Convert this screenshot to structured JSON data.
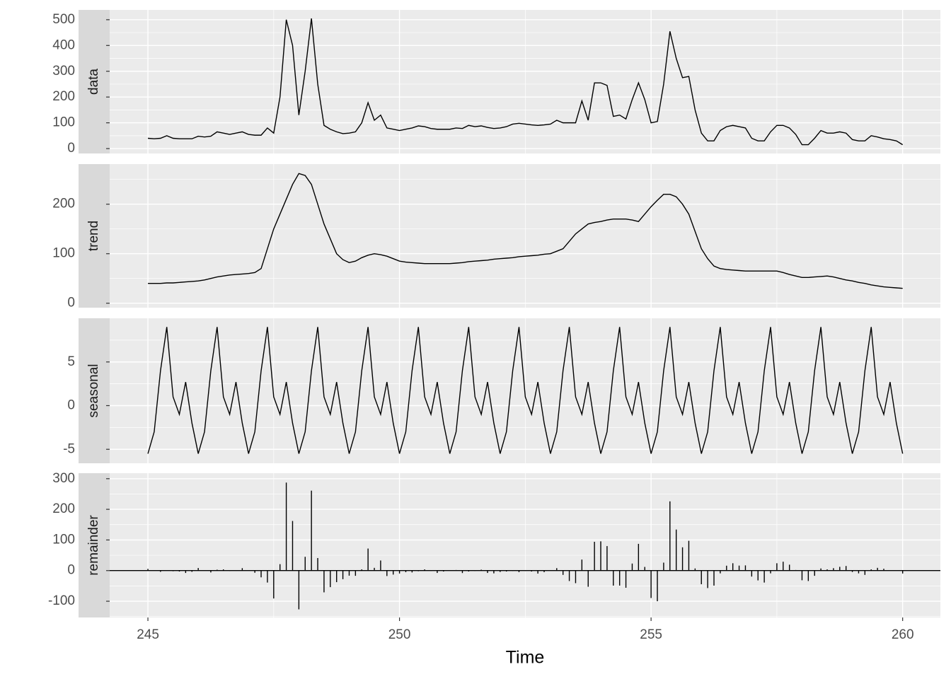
{
  "chart_data": [
    {
      "type": "line",
      "strip_label": "data",
      "ylim": [
        -19,
        538
      ],
      "yticks": [
        0,
        100,
        200,
        300,
        400,
        500
      ],
      "grid": true,
      "color": "#000000",
      "values": [
        40,
        38,
        40,
        50,
        40,
        38,
        38,
        38,
        48,
        45,
        48,
        65,
        60,
        55,
        60,
        65,
        55,
        52,
        52,
        80,
        60,
        200,
        500,
        400,
        130,
        300,
        505,
        250,
        90,
        75,
        65,
        58,
        60,
        65,
        100,
        178,
        110,
        130,
        80,
        75,
        70,
        75,
        80,
        88,
        85,
        78,
        75,
        75,
        75,
        80,
        78,
        90,
        85,
        88,
        82,
        78,
        80,
        85,
        95,
        98,
        95,
        92,
        90,
        92,
        95,
        110,
        100,
        100,
        100,
        185,
        110,
        255,
        255,
        245,
        125,
        130,
        115,
        190,
        255,
        190,
        100,
        105,
        250,
        455,
        350,
        275,
        280,
        150,
        60,
        30,
        30,
        70,
        85,
        90,
        85,
        80,
        40,
        30,
        30,
        65,
        90,
        90,
        80,
        55,
        15,
        15,
        40,
        70,
        60,
        60,
        65,
        60,
        35,
        30,
        30,
        50,
        45,
        38,
        35,
        30,
        15
      ]
    },
    {
      "type": "line",
      "strip_label": "trend",
      "ylim": [
        -9,
        281
      ],
      "yticks": [
        0,
        100,
        200
      ],
      "grid": true,
      "color": "#000000",
      "values": [
        40,
        40,
        40,
        41,
        41,
        42,
        43,
        44,
        45,
        47,
        50,
        53,
        55,
        57,
        58,
        59,
        60,
        62,
        70,
        110,
        150,
        180,
        210,
        240,
        262,
        258,
        240,
        200,
        160,
        130,
        100,
        88,
        82,
        85,
        92,
        97,
        100,
        98,
        95,
        90,
        85,
        83,
        82,
        81,
        80,
        80,
        80,
        80,
        80,
        81,
        82,
        84,
        85,
        86,
        87,
        89,
        90,
        91,
        92,
        94,
        95,
        96,
        97,
        99,
        100,
        105,
        110,
        125,
        140,
        150,
        160,
        163,
        165,
        168,
        170,
        170,
        170,
        168,
        165,
        180,
        195,
        208,
        220,
        220,
        215,
        200,
        180,
        145,
        110,
        90,
        75,
        70,
        68,
        67,
        66,
        65,
        65,
        65,
        65,
        65,
        65,
        62,
        58,
        55,
        52,
        52,
        53,
        54,
        55,
        53,
        50,
        47,
        45,
        42,
        40,
        37,
        35,
        33,
        32,
        31,
        30
      ]
    },
    {
      "type": "line",
      "strip_label": "seasonal",
      "ylim": [
        -6.6,
        10
      ],
      "yticks": [
        -5,
        0,
        5
      ],
      "grid": true,
      "color": "#000000",
      "values": [
        -5.5,
        -3,
        4,
        9,
        1,
        -1,
        2.7,
        -2,
        -5.5,
        -3,
        4,
        9,
        1,
        -1,
        2.7,
        -2,
        -5.5,
        -3,
        4,
        9,
        1,
        -1,
        2.7,
        -2,
        -5.5,
        -3,
        4,
        9,
        1,
        -1,
        2.7,
        -2,
        -5.5,
        -3,
        4,
        9,
        1,
        -1,
        2.7,
        -2,
        -5.5,
        -3,
        4,
        9,
        1,
        -1,
        2.7,
        -2,
        -5.5,
        -3,
        4,
        9,
        1,
        -1,
        2.7,
        -2,
        -5.5,
        -3,
        4,
        9,
        1,
        -1,
        2.7,
        -2,
        -5.5,
        -3,
        4,
        9,
        1,
        -1,
        2.7,
        -2,
        -5.5,
        -3,
        4,
        9,
        1,
        -1,
        2.7,
        -2,
        -5.5,
        -3,
        4,
        9,
        1,
        -1,
        2.7,
        -2,
        -5.5,
        -3,
        4,
        9,
        1,
        -1,
        2.7,
        -2,
        -5.5,
        -3,
        4,
        9,
        1,
        -1,
        2.7,
        -2,
        -5.5,
        -3,
        4,
        9,
        1,
        -1,
        2.7,
        -2,
        -5.5,
        -3,
        4,
        9,
        1,
        -1,
        2.7,
        -2,
        -5.5
      ]
    },
    {
      "type": "bar",
      "strip_label": "remainder",
      "ylim": [
        -153,
        318
      ],
      "yticks": [
        -100,
        0,
        100,
        200,
        300
      ],
      "grid": true,
      "color": "#000000",
      "xlabel": "Time",
      "xlim": [
        244.24,
        260.75
      ],
      "xticks": [
        245,
        250,
        255,
        260
      ],
      "x": [
        245,
        245.125,
        245.25,
        245.375,
        245.5,
        245.625,
        245.75,
        245.875,
        246,
        246.125,
        246.25,
        246.375,
        246.5,
        246.625,
        246.75,
        246.875,
        247,
        247.125,
        247.25,
        247.375,
        247.5,
        247.625,
        247.75,
        247.875,
        248,
        248.125,
        248.25,
        248.375,
        248.5,
        248.625,
        248.75,
        248.875,
        249,
        249.125,
        249.25,
        249.375,
        249.5,
        249.625,
        249.75,
        249.875,
        250,
        250.125,
        250.25,
        250.375,
        250.5,
        250.625,
        250.75,
        250.875,
        251,
        251.125,
        251.25,
        251.375,
        251.5,
        251.625,
        251.75,
        251.875,
        252,
        252.125,
        252.25,
        252.375,
        252.5,
        252.625,
        252.75,
        252.875,
        253,
        253.125,
        253.25,
        253.375,
        253.5,
        253.625,
        253.75,
        253.875,
        254,
        254.125,
        254.25,
        254.375,
        254.5,
        254.625,
        254.75,
        254.875,
        255,
        255.125,
        255.25,
        255.375,
        255.5,
        255.625,
        255.75,
        255.875,
        256,
        256.125,
        256.25,
        256.375,
        256.5,
        256.625,
        256.75,
        256.875,
        257,
        257.125,
        257.25,
        257.375,
        257.5,
        257.625,
        257.75,
        257.875,
        258,
        258.125,
        258.25,
        258.375,
        258.5,
        258.625,
        258.75,
        258.875,
        259,
        259.125,
        259.25,
        259.375,
        259.5,
        259.625,
        259.75,
        259.875,
        260
      ],
      "values": [
        5.5,
        1,
        -4,
        0,
        -2,
        -3,
        -7.7,
        -4,
        8.5,
        1,
        -6,
        3,
        4,
        -1,
        -0.7,
        8,
        0.5,
        -7,
        -22,
        -39,
        -91,
        21,
        287.3,
        162,
        -126.5,
        45,
        261,
        41,
        -71,
        -54,
        -37.7,
        -28,
        -16.5,
        -17,
        4,
        72,
        9,
        33,
        -17.7,
        -13,
        -9.5,
        -5,
        -6,
        -2,
        4,
        -1,
        -7.7,
        -3,
        0.5,
        2,
        -8,
        -3,
        -1,
        3,
        -7.7,
        -9,
        -4.5,
        -3,
        -1,
        -5,
        -1,
        -3,
        -9.7,
        -5,
        0.5,
        8,
        -14,
        -34,
        -41,
        36,
        -52.7,
        94,
        95.5,
        80,
        -49,
        -49,
        -56,
        23,
        87.3,
        12,
        -89.5,
        -100,
        26,
        226,
        134,
        76,
        97.3,
        7,
        -44.5,
        -57,
        -49,
        -9,
        16,
        24,
        16.3,
        17,
        -19.5,
        -32,
        -39,
        -9,
        24,
        29,
        19.3,
        2,
        -31.5,
        -34,
        -17,
        7,
        4,
        8,
        12.3,
        15,
        -4.5,
        -9,
        -14,
        4,
        9,
        6,
        0.3,
        1,
        -9.5
      ]
    }
  ]
}
